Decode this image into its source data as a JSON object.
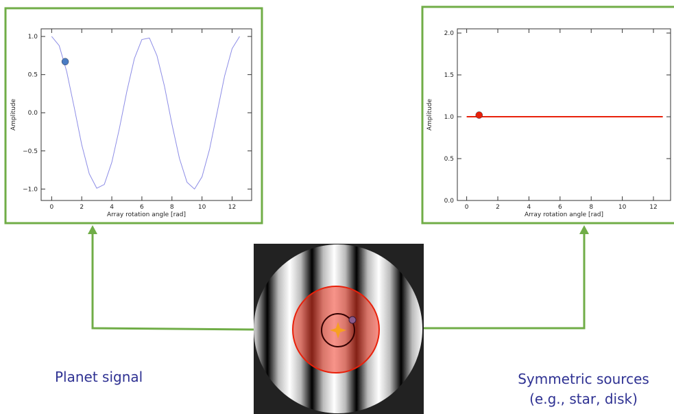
{
  "chart_data": [
    {
      "type": "line",
      "ylabel": "Amplitude",
      "xlabel": "Array rotation angle [rad]",
      "x": [
        0,
        0.5,
        1,
        1.5,
        2,
        2.5,
        3,
        3.5,
        4,
        4.5,
        5,
        5.5,
        6,
        6.5,
        7,
        7.5,
        8,
        8.5,
        9,
        9.5,
        10,
        10.5,
        11,
        11.5,
        12,
        12.5
      ],
      "values": [
        1,
        0.88,
        0.54,
        0.07,
        -0.42,
        -0.8,
        -0.99,
        -0.94,
        -0.65,
        -0.21,
        0.28,
        0.71,
        0.96,
        0.98,
        0.75,
        0.35,
        -0.15,
        -0.6,
        -0.91,
        -1,
        -0.84,
        -0.48,
        0,
        0.48,
        0.84,
        1
      ],
      "color": "#8c8ce6",
      "point": {
        "x": 0.9,
        "y": 0.67,
        "color": "#4a7cc4"
      },
      "xlim": [
        -0.7,
        13.3
      ],
      "xticks": [
        0,
        2,
        4,
        6,
        8,
        10,
        12
      ],
      "ylim": [
        -1.15,
        1.1
      ],
      "yticks": [
        {
          "value": -1,
          "label": "−1.0"
        },
        {
          "value": -0.5,
          "label": "−0.5"
        },
        {
          "value": 0,
          "label": "0.0"
        },
        0.5,
        {
          "value": 1,
          "label": "1.0"
        }
      ]
    },
    {
      "type": "line",
      "ylabel": "Amplitude",
      "xlabel": "Array rotation angle [rad]",
      "x": [
        0,
        12.6
      ],
      "values": [
        1,
        1
      ],
      "color": "#e8200a",
      "point": {
        "x": 0.8,
        "y": 1.02,
        "color": "#e8200a"
      },
      "xlim": [
        -0.6,
        13.1
      ],
      "xticks": [
        0,
        2,
        4,
        6,
        8,
        10,
        12
      ],
      "ylim": [
        0,
        2.05
      ],
      "yticks": [
        {
          "value": 0,
          "label": "0.0"
        },
        0.5,
        {
          "value": 1,
          "label": "1.0"
        },
        1.5,
        {
          "value": 2,
          "label": "2.0"
        }
      ]
    }
  ],
  "labels": {
    "planet": "Planet signal",
    "symmetric": [
      "Symmetric sources",
      "(e.g., star, disk)"
    ]
  }
}
